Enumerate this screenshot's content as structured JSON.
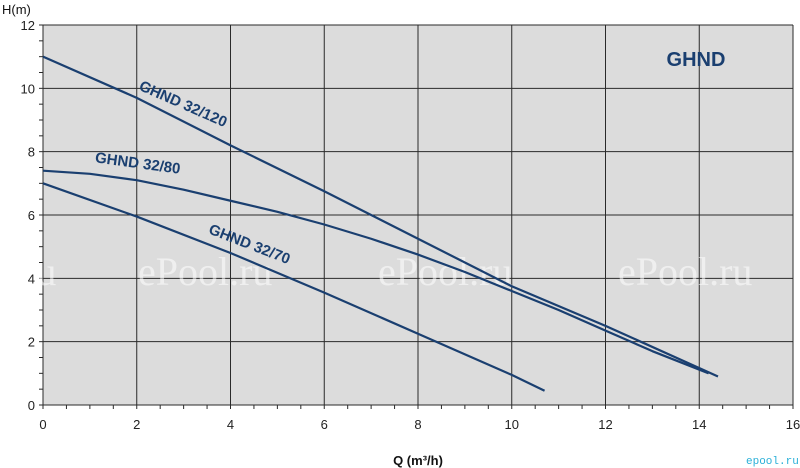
{
  "colors": {
    "plot_bg": "#dcdcdc",
    "grid": "#2a2a2a",
    "curve": "#1a3f70",
    "title": "#1a3f70",
    "logo": "#2ab0d8"
  },
  "watermark": {
    "text": "ePool.ru",
    "edge_fragment": "l.ru"
  },
  "logo": {
    "text": "epool.ru"
  },
  "chart_data": {
    "type": "line",
    "title": "GHND",
    "xlabel": "Q (m³/h)",
    "ylabel": "H(m)",
    "xlim": [
      0,
      16
    ],
    "ylim": [
      0,
      12
    ],
    "xticks": [
      0,
      2,
      4,
      6,
      8,
      10,
      12,
      14,
      16
    ],
    "yticks": [
      0,
      2,
      4,
      6,
      8,
      10,
      12
    ],
    "grid": true,
    "legend": "none",
    "series": [
      {
        "name": "GHND 32/120",
        "x": [
          0,
          2,
          4,
          6,
          8,
          10,
          12,
          14.4
        ],
        "y": [
          11.0,
          9.7,
          8.2,
          6.75,
          5.25,
          3.75,
          2.5,
          0.9
        ]
      },
      {
        "name": "GHND 32/80",
        "x": [
          0,
          1,
          2,
          3,
          4,
          5,
          6,
          7,
          8,
          9,
          10,
          11,
          12,
          13,
          14.2
        ],
        "y": [
          7.4,
          7.3,
          7.1,
          6.8,
          6.45,
          6.1,
          5.7,
          5.25,
          4.75,
          4.2,
          3.6,
          3.0,
          2.35,
          1.7,
          1.0
        ]
      },
      {
        "name": "GHND 32/70",
        "x": [
          0,
          2,
          4,
          6,
          8,
          10,
          10.7
        ],
        "y": [
          7.0,
          5.95,
          4.8,
          3.55,
          2.25,
          0.95,
          0.45
        ]
      }
    ]
  }
}
